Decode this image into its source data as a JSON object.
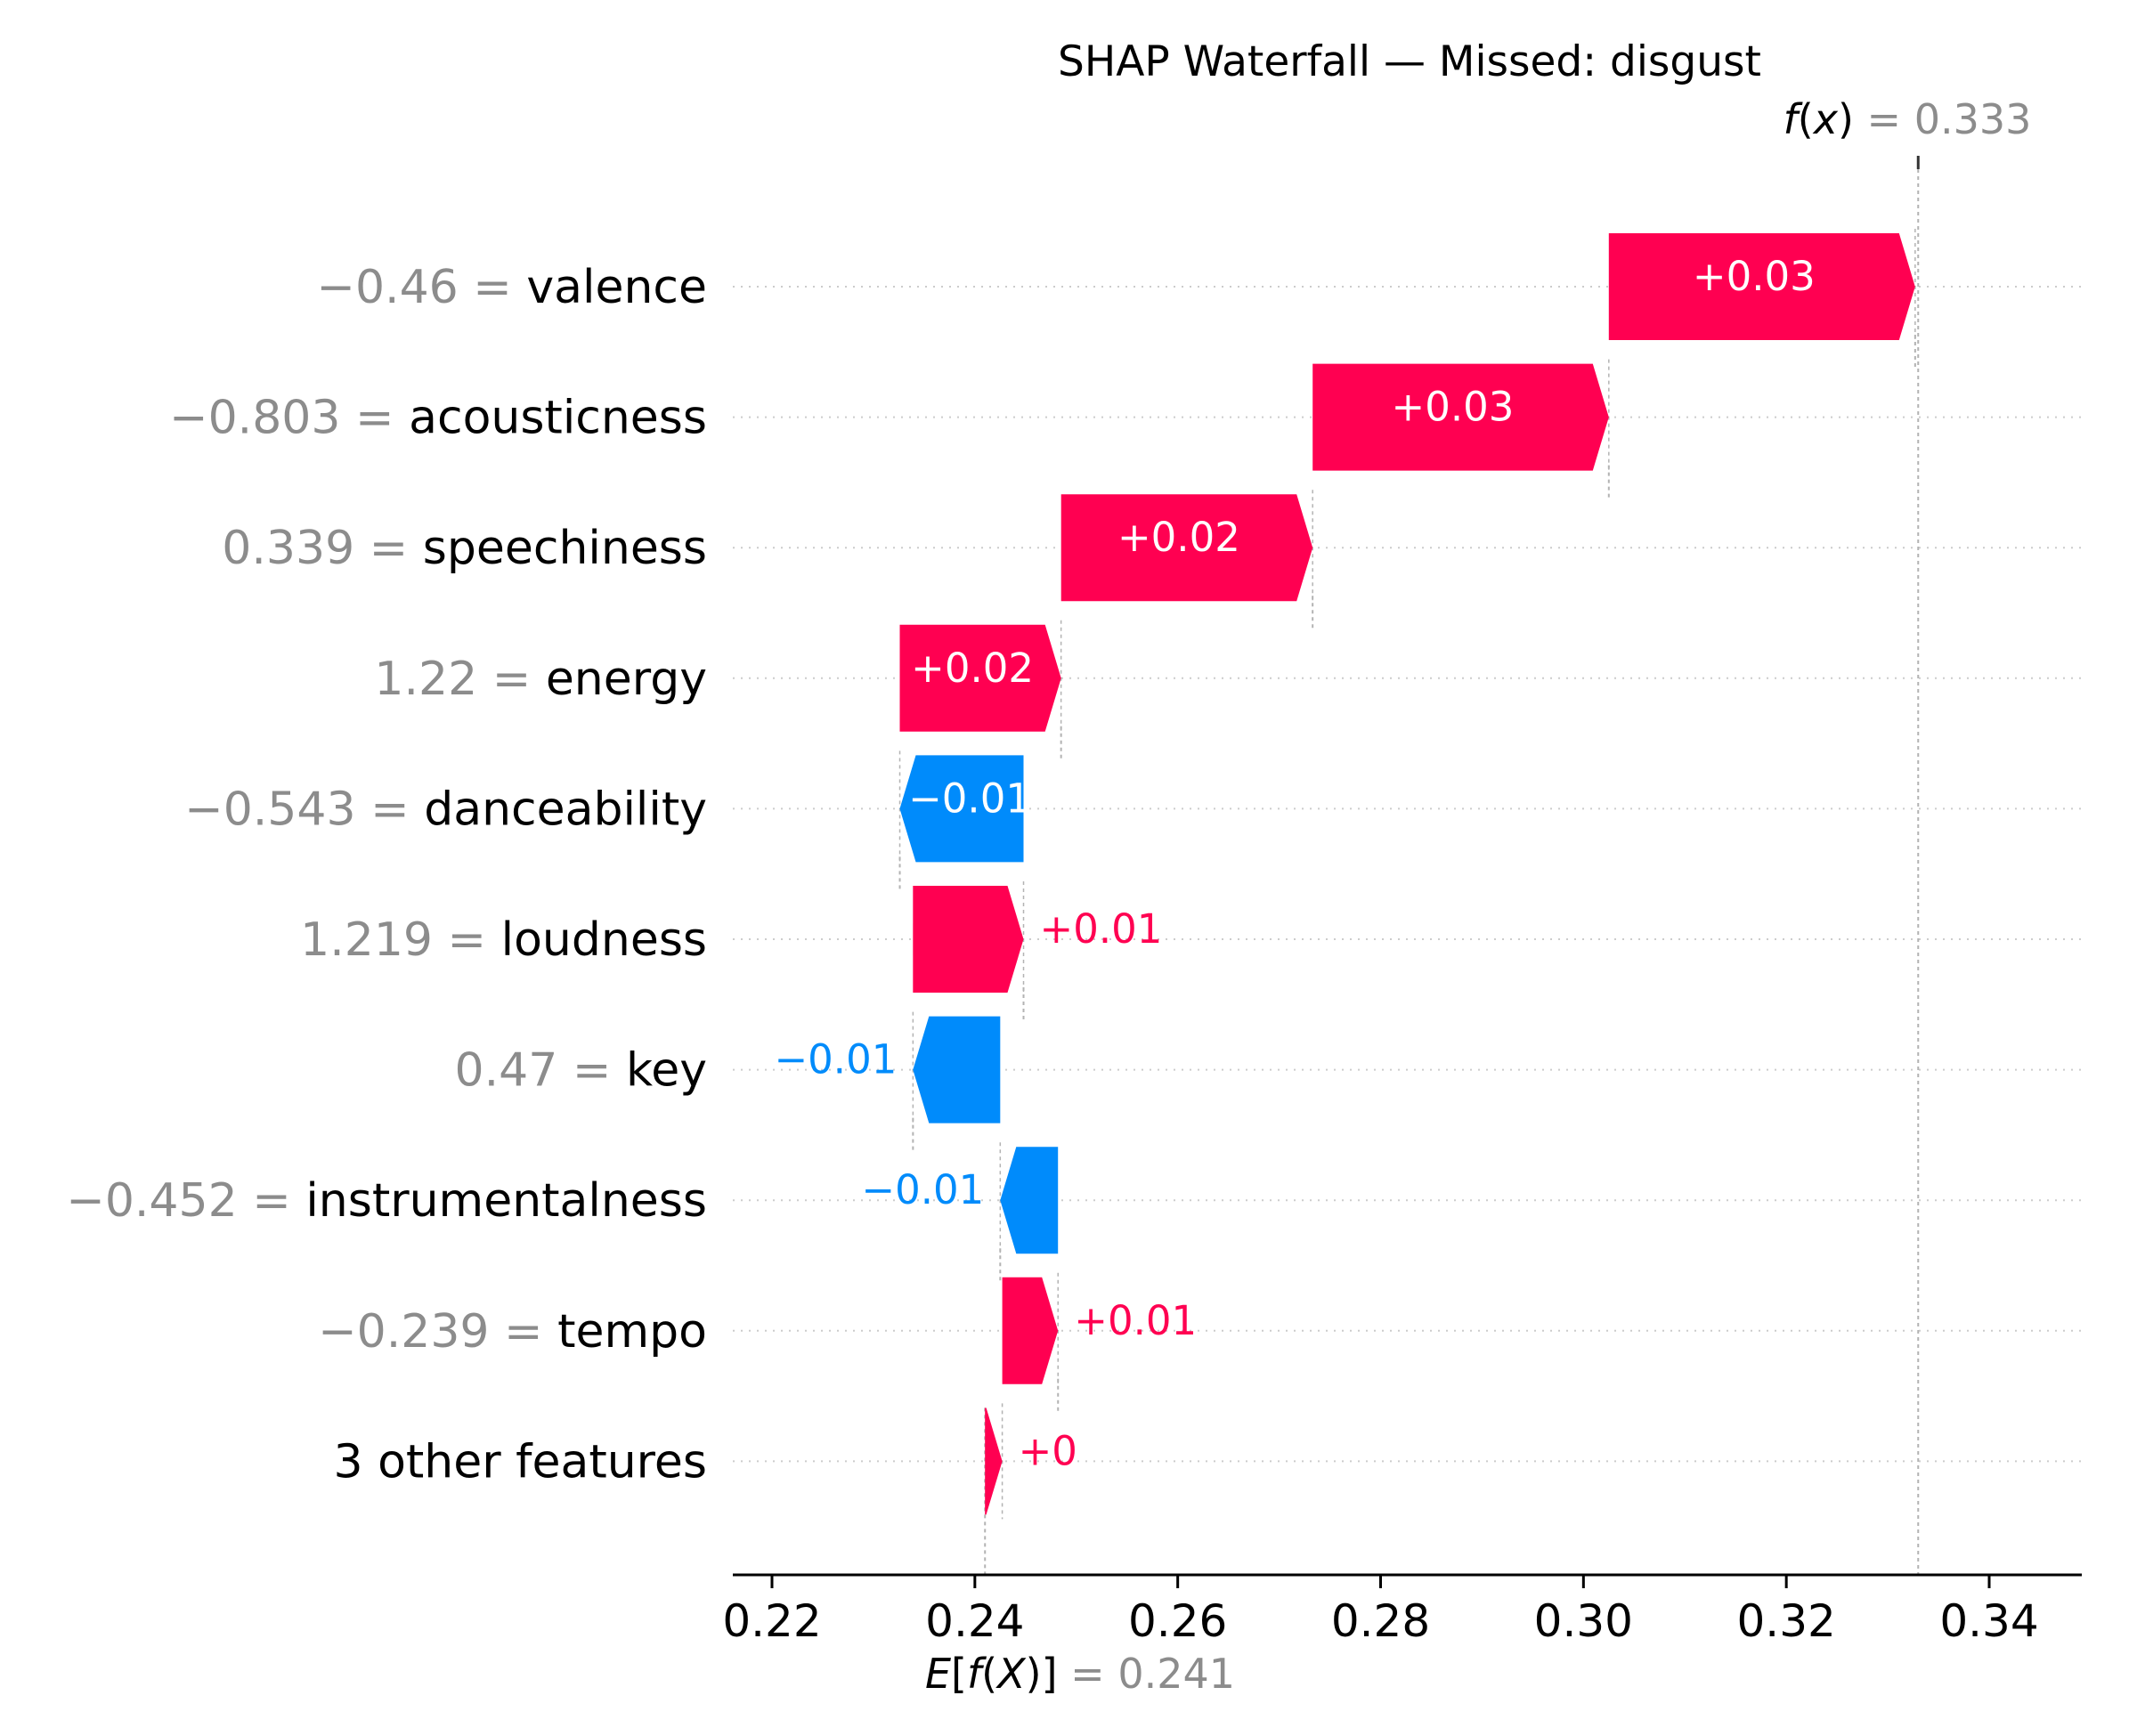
{
  "chart_data": {
    "type": "waterfall",
    "title": "SHAP Waterfall — Missed: disgust",
    "base_value": 0.241,
    "base_label": "0.241",
    "output_value": 0.333,
    "output_label": "0.333",
    "xlim": [
      0.216,
      0.345
    ],
    "xticks": [
      0.22,
      0.24,
      0.26,
      0.28,
      0.3,
      0.32,
      0.34
    ],
    "xtick_labels": [
      "0.22",
      "0.24",
      "0.26",
      "0.28",
      "0.30",
      "0.32",
      "0.34"
    ],
    "colors": {
      "positive": "#ff0051",
      "negative": "#008bfb",
      "value_text": "#8c8c8c"
    },
    "features": [
      {
        "value": "−0.46",
        "name": "valence",
        "label": "+0.03",
        "start": 0.3025,
        "end": 0.3327
      },
      {
        "value": "−0.803",
        "name": "acousticness",
        "label": "+0.03",
        "start": 0.2733,
        "end": 0.3025
      },
      {
        "value": "0.339",
        "name": "speechiness",
        "label": "+0.02",
        "start": 0.2485,
        "end": 0.2733
      },
      {
        "value": "1.22",
        "name": "energy",
        "label": "+0.02",
        "start": 0.2326,
        "end": 0.2485
      },
      {
        "value": "−0.543",
        "name": "danceability",
        "label": "−0.01",
        "start": 0.2448,
        "end": 0.2326
      },
      {
        "value": "1.219",
        "name": "loudness",
        "label": "+0.01",
        "start": 0.2339,
        "end": 0.2448
      },
      {
        "value": "0.47",
        "name": "key",
        "label": "−0.01",
        "start": 0.2425,
        "end": 0.2339
      },
      {
        "value": "−0.452",
        "name": "instrumentalness",
        "label": "−0.01",
        "start": 0.2482,
        "end": 0.2425
      },
      {
        "value": "−0.239",
        "name": "tempo",
        "label": "+0.01",
        "start": 0.2427,
        "end": 0.2482
      },
      {
        "value": "",
        "name": "3 other features",
        "label": "+0",
        "start": 0.241,
        "end": 0.2427
      }
    ]
  }
}
